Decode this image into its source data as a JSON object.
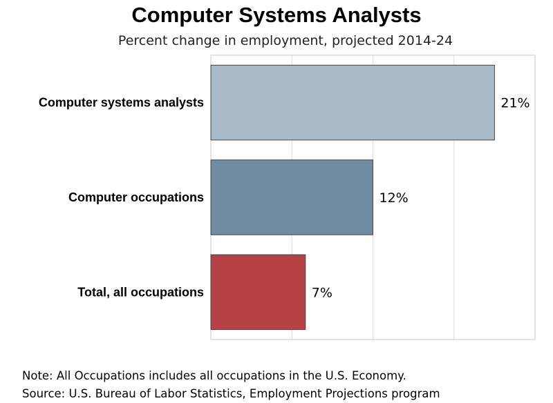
{
  "chart_data": {
    "type": "bar",
    "orientation": "horizontal",
    "title": "Computer Systems Analysts",
    "subtitle": "Percent change in employment, projected 2014-24",
    "categories": [
      "Computer systems analysts",
      "Computer occupations",
      "Total, all occupations"
    ],
    "values": [
      21,
      12,
      7
    ],
    "data_labels": [
      "21%",
      "12%",
      "7%"
    ],
    "colors": [
      "#a9bbc8",
      "#6f8ca3",
      "#b54246"
    ],
    "xlim": [
      0,
      24
    ],
    "grid": true,
    "note": "Note: All Occupations includes all occupations in the U.S. Economy.",
    "source": "Source: U.S. Bureau of Labor Statistics, Employment Projections program"
  }
}
